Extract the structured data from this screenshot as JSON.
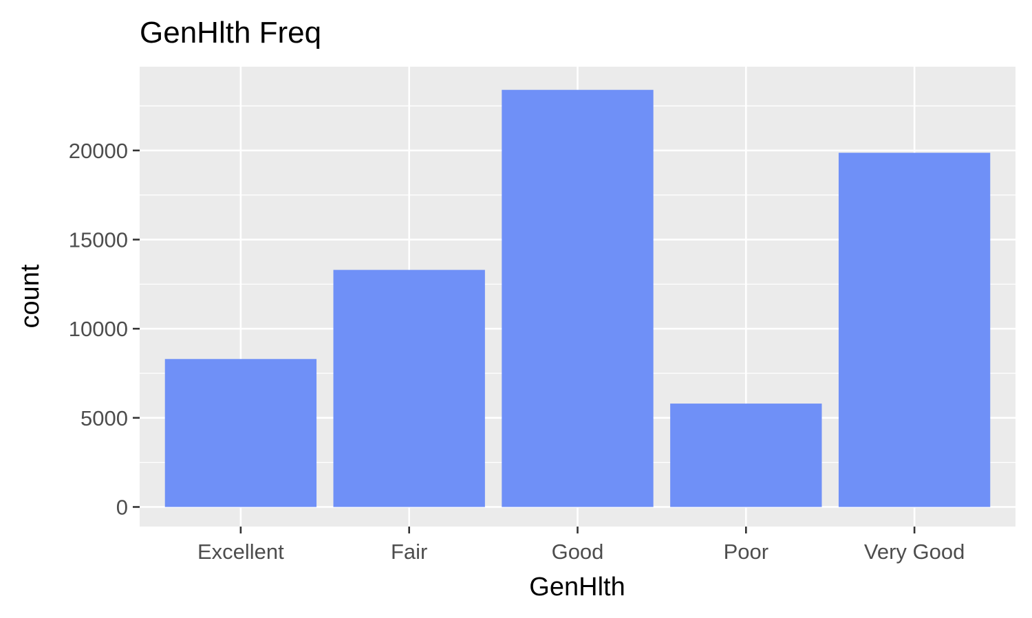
{
  "chart_data": {
    "type": "bar",
    "title": "GenHlth Freq",
    "xlabel": "GenHlth",
    "ylabel": "count",
    "categories": [
      "Excellent",
      "Fair",
      "Good",
      "Poor",
      "Very Good"
    ],
    "values": [
      8300,
      13300,
      23400,
      5800,
      19870
    ],
    "ylim": [
      -1100,
      24700
    ],
    "yticks": [
      0,
      5000,
      10000,
      15000,
      20000
    ],
    "ytick_labels": [
      "0",
      "5000",
      "10000",
      "15000",
      "20000"
    ],
    "grid": true,
    "panel_color": "#ebebeb",
    "bar_color": "#6f90f7"
  }
}
